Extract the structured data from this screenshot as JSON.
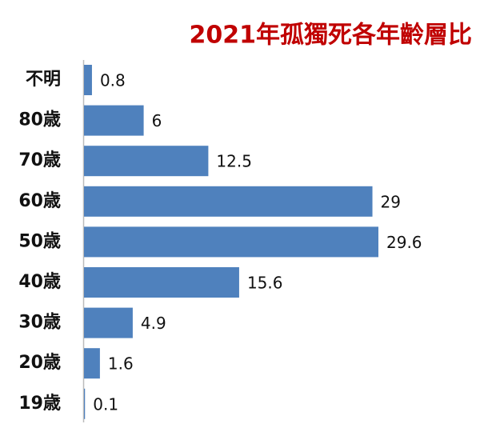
{
  "chart_data": {
    "type": "bar",
    "orientation": "horizontal",
    "title": "2021年孤獨死各年齡層比",
    "categories": [
      "不明",
      "80歳",
      "70歳",
      "60歳",
      "50歳",
      "40歳",
      "30歳",
      "20歳",
      "19歳"
    ],
    "values": [
      0.8,
      6,
      12.5,
      29,
      29.6,
      15.6,
      4.9,
      1.6,
      0.1
    ],
    "color": "#4f81bd"
  }
}
